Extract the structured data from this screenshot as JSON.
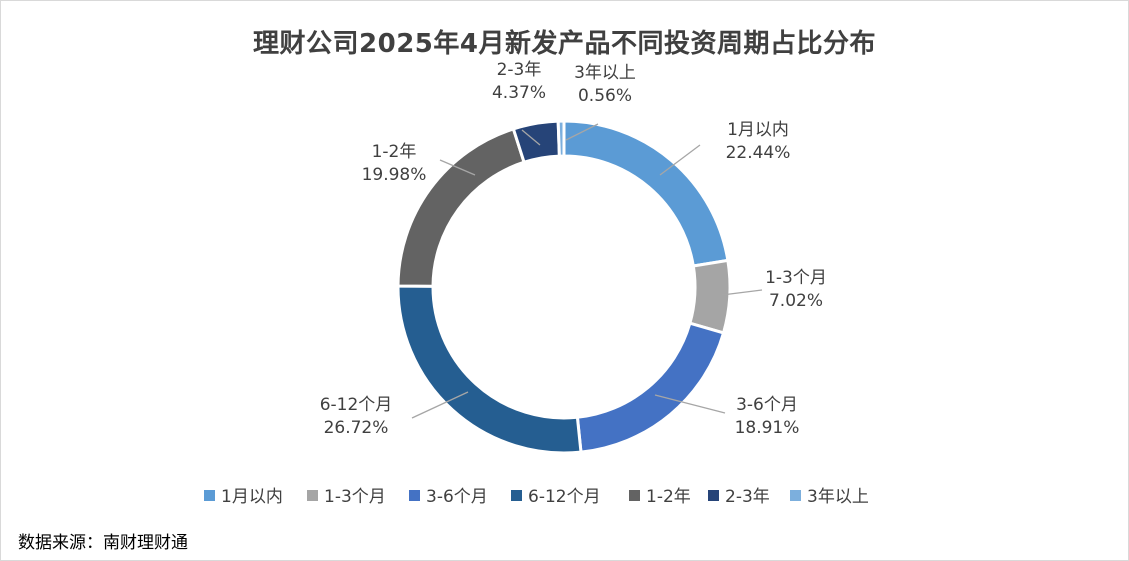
{
  "chart_data": {
    "type": "pie",
    "title": "理财公司2025年4月新发产品不同投资周期占比分布",
    "categories": [
      "1月以内",
      "1-3个月",
      "3-6个月",
      "6-12个月",
      "1-2年",
      "2-3年",
      "3年以上"
    ],
    "values": [
      22.44,
      7.02,
      18.91,
      26.72,
      19.98,
      4.37,
      0.56
    ],
    "value_labels": [
      "22.44%",
      "7.02%",
      "18.91%",
      "26.72%",
      "19.98%",
      "4.37%",
      "0.56%"
    ],
    "colors": [
      "#5B9BD5",
      "#A5A5A5",
      "#4472C4",
      "#255E91",
      "#636363",
      "#264478",
      "#7CAFDD"
    ],
    "donut": true,
    "legend": "bottom"
  },
  "source": "数据来源：南财理财通"
}
